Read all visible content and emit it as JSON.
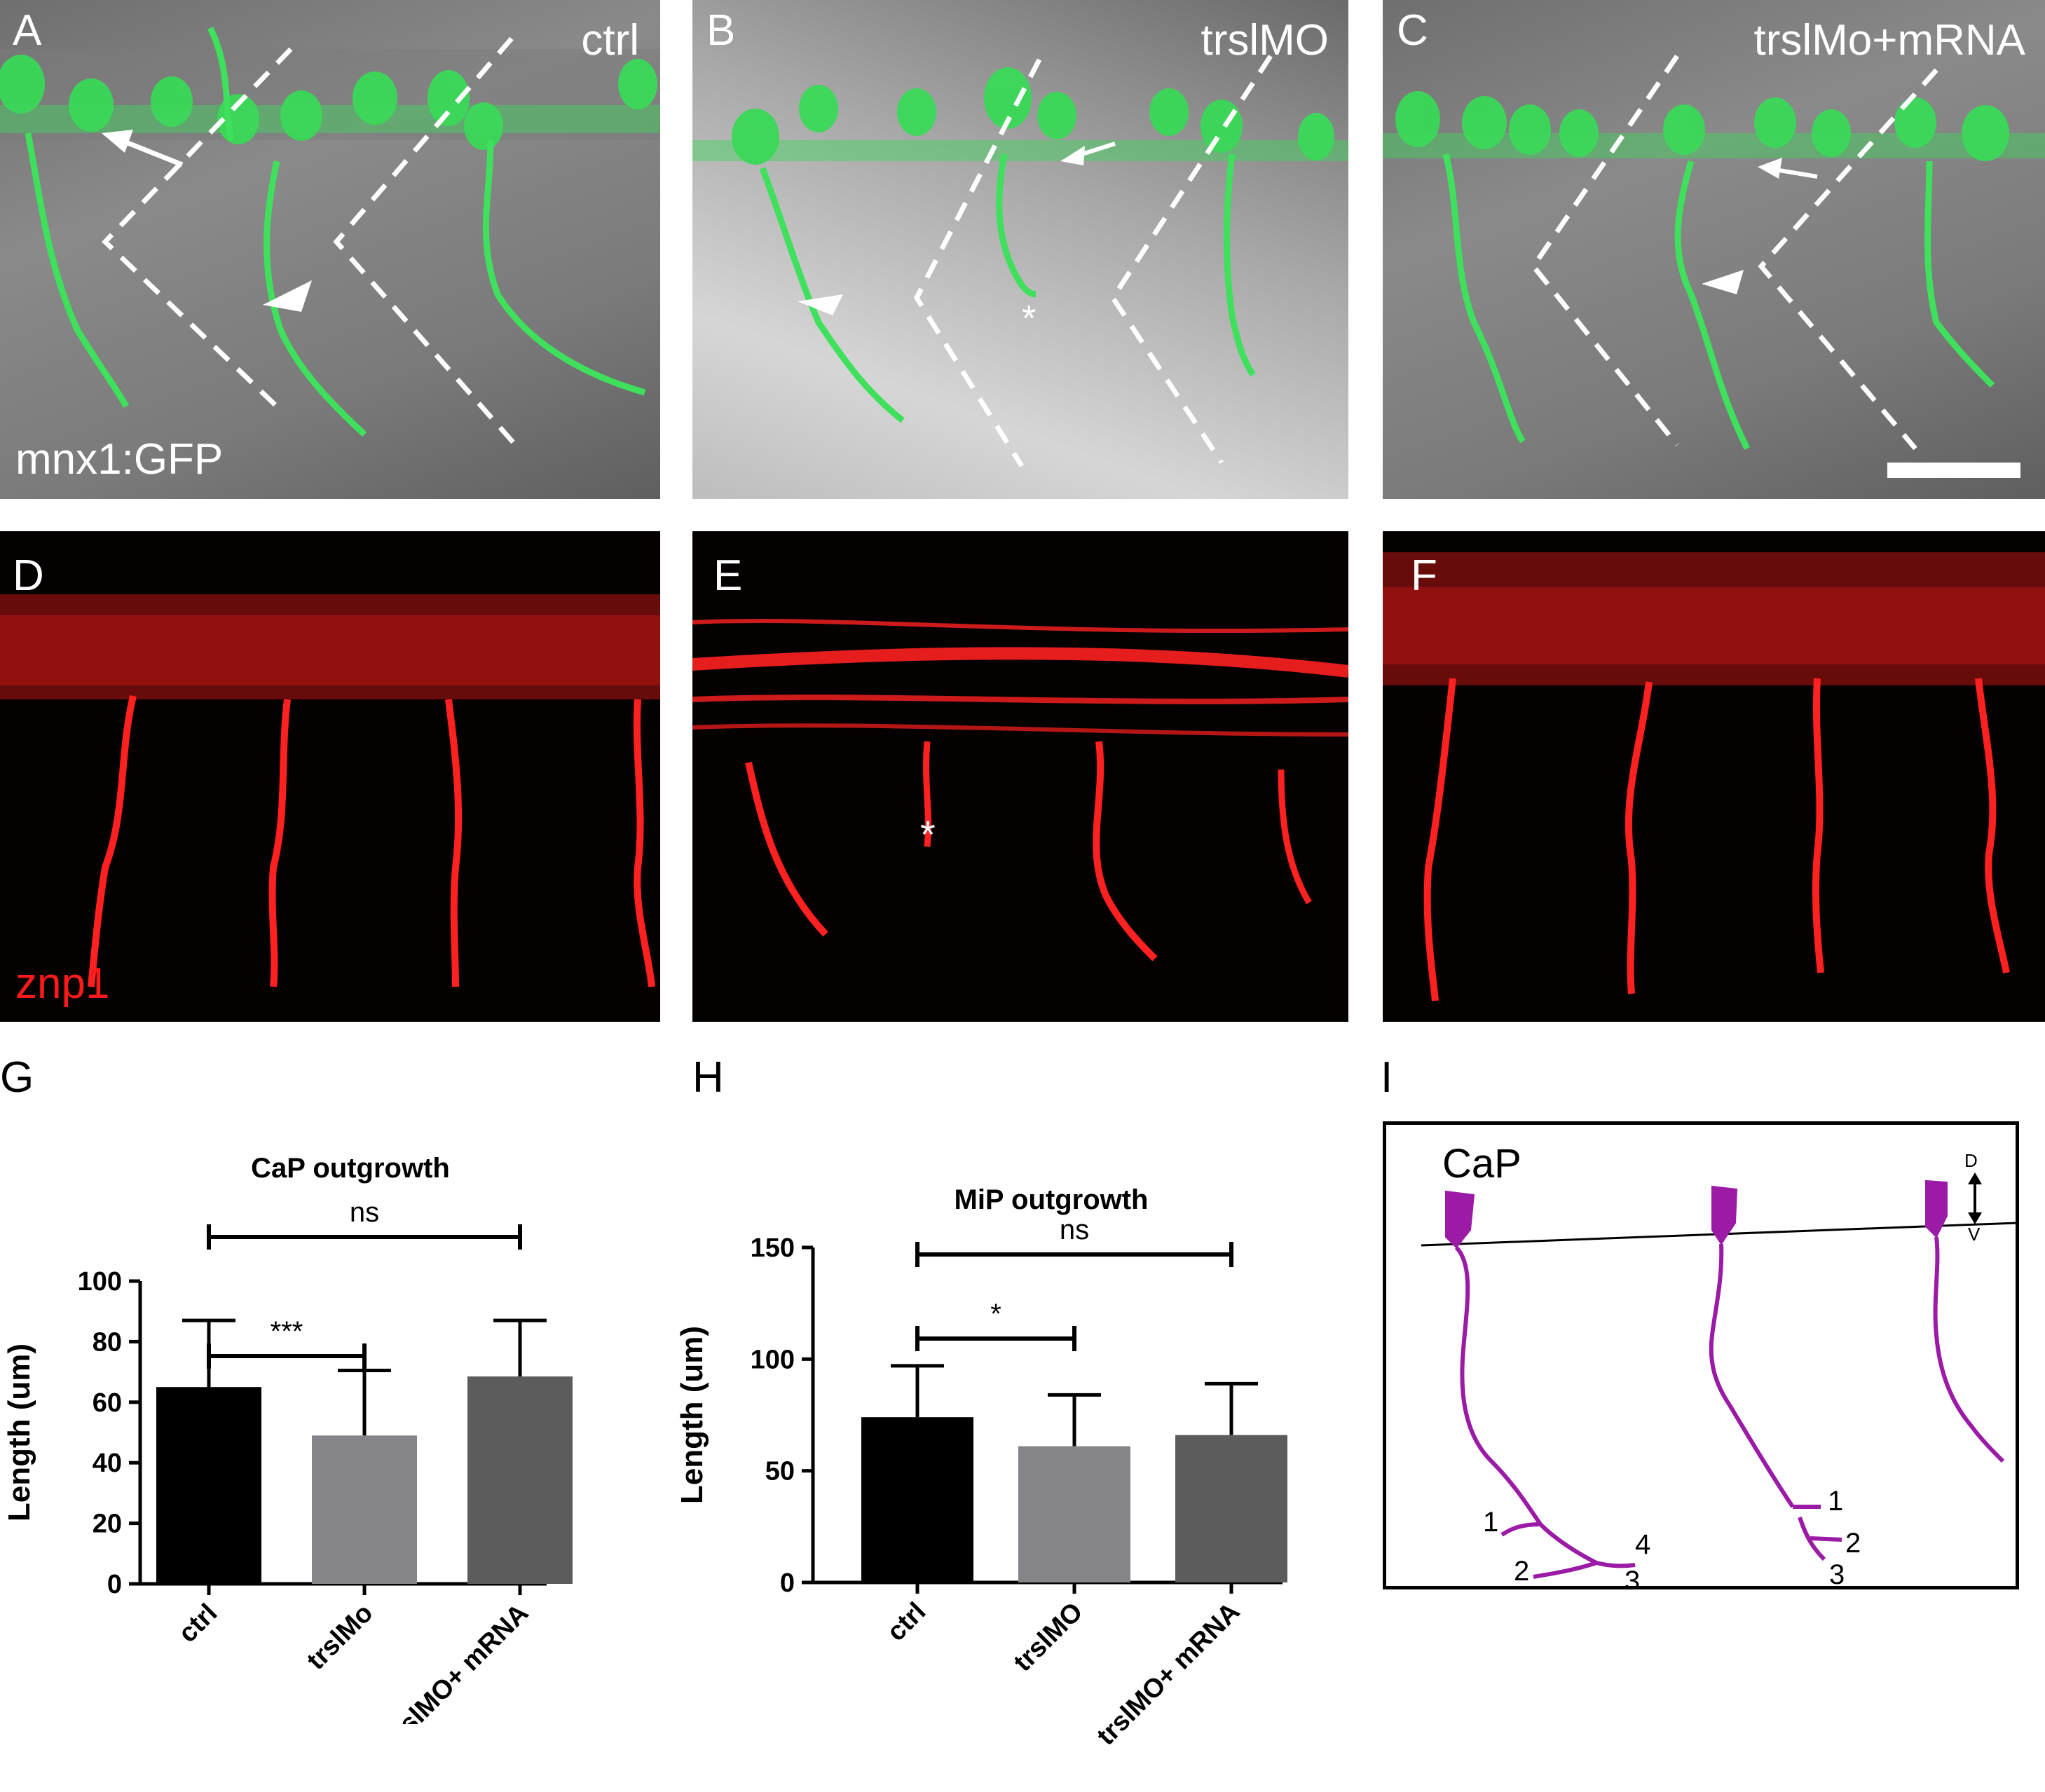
{
  "panel_labels": {
    "A": "A",
    "B": "B",
    "C": "C",
    "D": "D",
    "E": "E",
    "F": "F",
    "G": "G",
    "H": "H",
    "I": "I"
  },
  "top_row": {
    "a_condition": "ctrl",
    "b_condition": "trslMO",
    "c_condition": "trslMo+mRNA",
    "marker": "mnx1:GFP"
  },
  "middle_row": {
    "marker": "znp1"
  },
  "annotations": {
    "asterisk": "*"
  },
  "colors": {
    "gfp": "#3de05a",
    "znp1": "#ff1a1a",
    "bar_ctrl": "#000000",
    "bar_mo": "#858589",
    "bar_rescue": "#5c5c5c",
    "neuron": "#9b1aa6"
  },
  "chart_data": [
    {
      "type": "bar",
      "title": "CaP outgrowth",
      "ylabel": "Length (um)",
      "categories": [
        "ctrl",
        "trslMo",
        "trslMO+ mRNA"
      ],
      "values": [
        65,
        49,
        68.5
      ],
      "error_upper": [
        87,
        70.5,
        87
      ],
      "ylim": [
        0,
        100
      ],
      "yticks": [
        "0",
        "20",
        "40",
        "60",
        "80",
        "100"
      ],
      "significance": [
        {
          "label": "***",
          "from": "ctrl",
          "to": "trslMo"
        },
        {
          "label": "ns",
          "from": "ctrl",
          "to": "trslMO+ mRNA"
        }
      ]
    },
    {
      "type": "bar",
      "title": "MiP outgrowth",
      "ylabel": "Length (um)",
      "categories": [
        "ctrl",
        "trslMO",
        "trslMO+ mRNA"
      ],
      "values": [
        74,
        61,
        66
      ],
      "error_upper": [
        97,
        84,
        89
      ],
      "ylim": [
        0,
        150
      ],
      "yticks": [
        "0",
        "50",
        "100",
        "150"
      ],
      "significance": [
        {
          "label": "*",
          "from": "ctrl",
          "to": "trslMO"
        },
        {
          "label": "ns",
          "from": "ctrl",
          "to": "trslMO+ mRNA"
        }
      ]
    }
  ],
  "schematic": {
    "title": "CaP",
    "axis_top": "D",
    "axis_bottom": "V",
    "branches_left": [
      "1",
      "2",
      "3",
      "4"
    ],
    "branches_middle": [
      "1",
      "2",
      "3"
    ]
  }
}
